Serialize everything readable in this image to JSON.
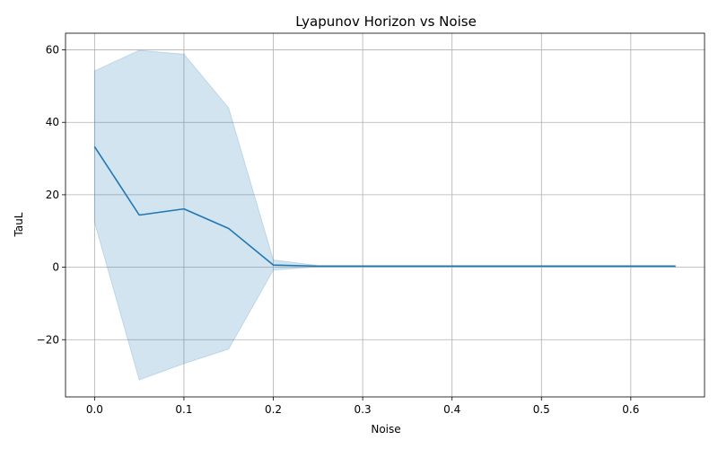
{
  "chart_data": {
    "type": "line",
    "title": "Lyapunov Horizon vs Noise",
    "xlabel": "Noise",
    "ylabel": "TauL",
    "xlim": [
      -0.0325,
      0.6825
    ],
    "ylim": [
      -35.8,
      64.6
    ],
    "grid": true,
    "x_ticks": [
      0.0,
      0.1,
      0.2,
      0.3,
      0.4,
      0.5,
      0.6
    ],
    "x_tick_labels": [
      "0.0",
      "0.1",
      "0.2",
      "0.3",
      "0.4",
      "0.5",
      "0.6"
    ],
    "y_ticks": [
      -20,
      0,
      20,
      40,
      60
    ],
    "y_tick_labels": [
      "−20",
      "0",
      "20",
      "40",
      "60"
    ],
    "series": [
      {
        "x": [
          0.0,
          0.05,
          0.1,
          0.15,
          0.2,
          0.25,
          0.3,
          0.35,
          0.4,
          0.45,
          0.5,
          0.55,
          0.6,
          0.65
        ],
        "mean": [
          33.3,
          14.4,
          16.1,
          10.7,
          0.6,
          0.3,
          0.3,
          0.3,
          0.3,
          0.3,
          0.3,
          0.3,
          0.3,
          0.3
        ],
        "upper": [
          54.2,
          59.9,
          58.8,
          44.0,
          2.0,
          0.5,
          0.5,
          0.5,
          0.5,
          0.5,
          0.5,
          0.5,
          0.5,
          0.5
        ],
        "lower": [
          12.4,
          -31.1,
          -26.6,
          -22.6,
          -0.8,
          0.1,
          0.1,
          0.1,
          0.1,
          0.1,
          0.1,
          0.1,
          0.1,
          0.1
        ],
        "line_color": "#1f77b4",
        "band_color": "#1f77b4"
      }
    ]
  }
}
